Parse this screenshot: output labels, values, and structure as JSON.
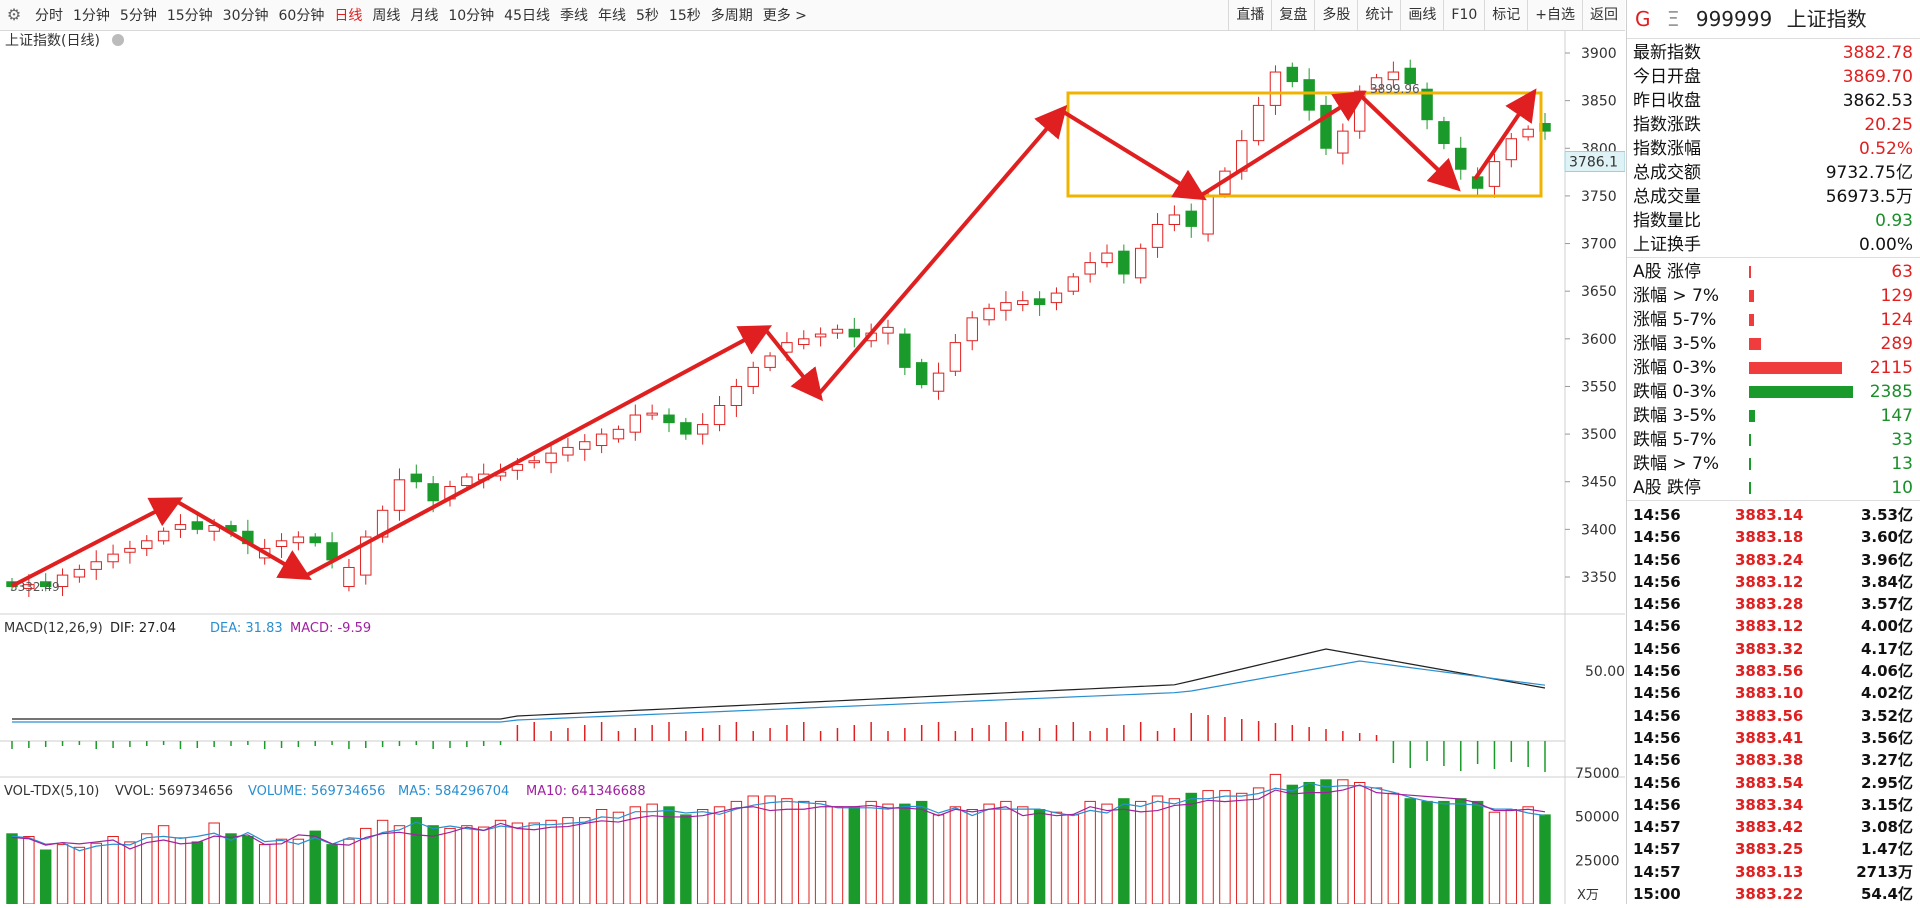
{
  "toolbar": {
    "periods": [
      "分时",
      "1分钟",
      "5分钟",
      "15分钟",
      "30分钟",
      "60分钟",
      "日线",
      "周线",
      "月线",
      "10分钟",
      "45日线",
      "季线",
      "年线",
      "5秒",
      "15秒",
      "多周期",
      "更多 >"
    ],
    "active_period": "日线",
    "tools": [
      "直播",
      "复盘",
      "多股",
      "统计",
      "画线",
      "F10",
      "标记",
      "+自选",
      "返回"
    ]
  },
  "chart": {
    "title": "上证指数(日线)",
    "y_ticks": [
      "3900",
      "3850",
      "3800",
      "3750",
      "3700",
      "3650",
      "3600",
      "3550",
      "3500",
      "3450",
      "3400",
      "3350"
    ],
    "price_marker": "3786.1",
    "high_label": "3899.96",
    "low_label": "3332.49",
    "macd_header": {
      "name": "MACD(12,26,9)",
      "dif": "DIF: 27.04",
      "dea": "DEA: 31.83",
      "macd": "MACD: -9.59"
    },
    "macd_tick": "50.00",
    "vol_header": {
      "name": "VOL-TDX(5,10)",
      "vvol": "VVOL: 569734656",
      "volume": "VOLUME: 569734656",
      "ma5": "MA5: 584296704",
      "ma10": "MA10: 641346688"
    },
    "vol_ticks": [
      "75000",
      "50000",
      "25000"
    ],
    "vol_unit": "X万",
    "colors": {
      "up": "#e02020",
      "down": "#1a9a2a",
      "box": "#f0b400",
      "arrow": "#e02020",
      "dif": "#222222",
      "dea": "#2a8fd0",
      "ma5": "#2a8fd0",
      "ma10": "#a020a0"
    }
  },
  "sidebar": {
    "header": {
      "badge": "G",
      "code": "999999",
      "name": "上证指数"
    },
    "quote": [
      {
        "label": "最新指数",
        "value": "3882.78",
        "color": "red"
      },
      {
        "label": "今日开盘",
        "value": "3869.70",
        "color": "red"
      },
      {
        "label": "昨日收盘",
        "value": "3862.53",
        "color": "blk"
      },
      {
        "label": "指数涨跌",
        "value": "20.25",
        "color": "red"
      },
      {
        "label": "指数涨幅",
        "value": "0.52%",
        "color": "red"
      },
      {
        "label": "总成交额",
        "value": "9732.75亿",
        "color": "blk"
      },
      {
        "label": "总成交量",
        "value": "56973.5万",
        "color": "blk"
      },
      {
        "label": "指数量比",
        "value": "0.93",
        "color": "green"
      },
      {
        "label": "上证换手",
        "value": "0.00%",
        "color": "blk"
      }
    ],
    "breadth": [
      {
        "label": "A股 涨停",
        "value": "63",
        "color": "red",
        "frac": 0.02
      },
      {
        "label": "涨幅 > 7%",
        "value": "129",
        "color": "red",
        "frac": 0.05
      },
      {
        "label": "涨幅 5-7%",
        "value": "124",
        "color": "red",
        "frac": 0.05
      },
      {
        "label": "涨幅 3-5%",
        "value": "289",
        "color": "red",
        "frac": 0.12
      },
      {
        "label": "涨幅 0-3%",
        "value": "2115",
        "color": "red",
        "frac": 0.89
      },
      {
        "label": "跌幅 0-3%",
        "value": "2385",
        "color": "green",
        "frac": 1.0
      },
      {
        "label": "跌幅 3-5%",
        "value": "147",
        "color": "green",
        "frac": 0.06
      },
      {
        "label": "跌幅 5-7%",
        "value": "33",
        "color": "green",
        "frac": 0.01
      },
      {
        "label": "跌幅 > 7%",
        "value": "13",
        "color": "green",
        "frac": 0.01
      },
      {
        "label": "A股 跌停",
        "value": "10",
        "color": "green",
        "frac": 0.01
      }
    ],
    "ticks": [
      [
        "14:56",
        "3883.14",
        "3.53亿"
      ],
      [
        "14:56",
        "3883.18",
        "3.60亿"
      ],
      [
        "14:56",
        "3883.24",
        "3.96亿"
      ],
      [
        "14:56",
        "3883.12",
        "3.84亿"
      ],
      [
        "14:56",
        "3883.28",
        "3.57亿"
      ],
      [
        "14:56",
        "3883.12",
        "4.00亿"
      ],
      [
        "14:56",
        "3883.32",
        "4.17亿"
      ],
      [
        "14:56",
        "3883.56",
        "4.06亿"
      ],
      [
        "14:56",
        "3883.10",
        "4.02亿"
      ],
      [
        "14:56",
        "3883.56",
        "3.52亿"
      ],
      [
        "14:56",
        "3883.41",
        "3.56亿"
      ],
      [
        "14:56",
        "3883.38",
        "3.27亿"
      ],
      [
        "14:56",
        "3883.54",
        "2.95亿"
      ],
      [
        "14:56",
        "3883.34",
        "3.15亿"
      ],
      [
        "14:57",
        "3883.42",
        "3.08亿"
      ],
      [
        "14:57",
        "3883.25",
        "1.47亿"
      ],
      [
        "14:57",
        "3883.13",
        "2713万"
      ],
      [
        "15:00",
        "3883.22",
        "54.4亿"
      ]
    ]
  }
}
